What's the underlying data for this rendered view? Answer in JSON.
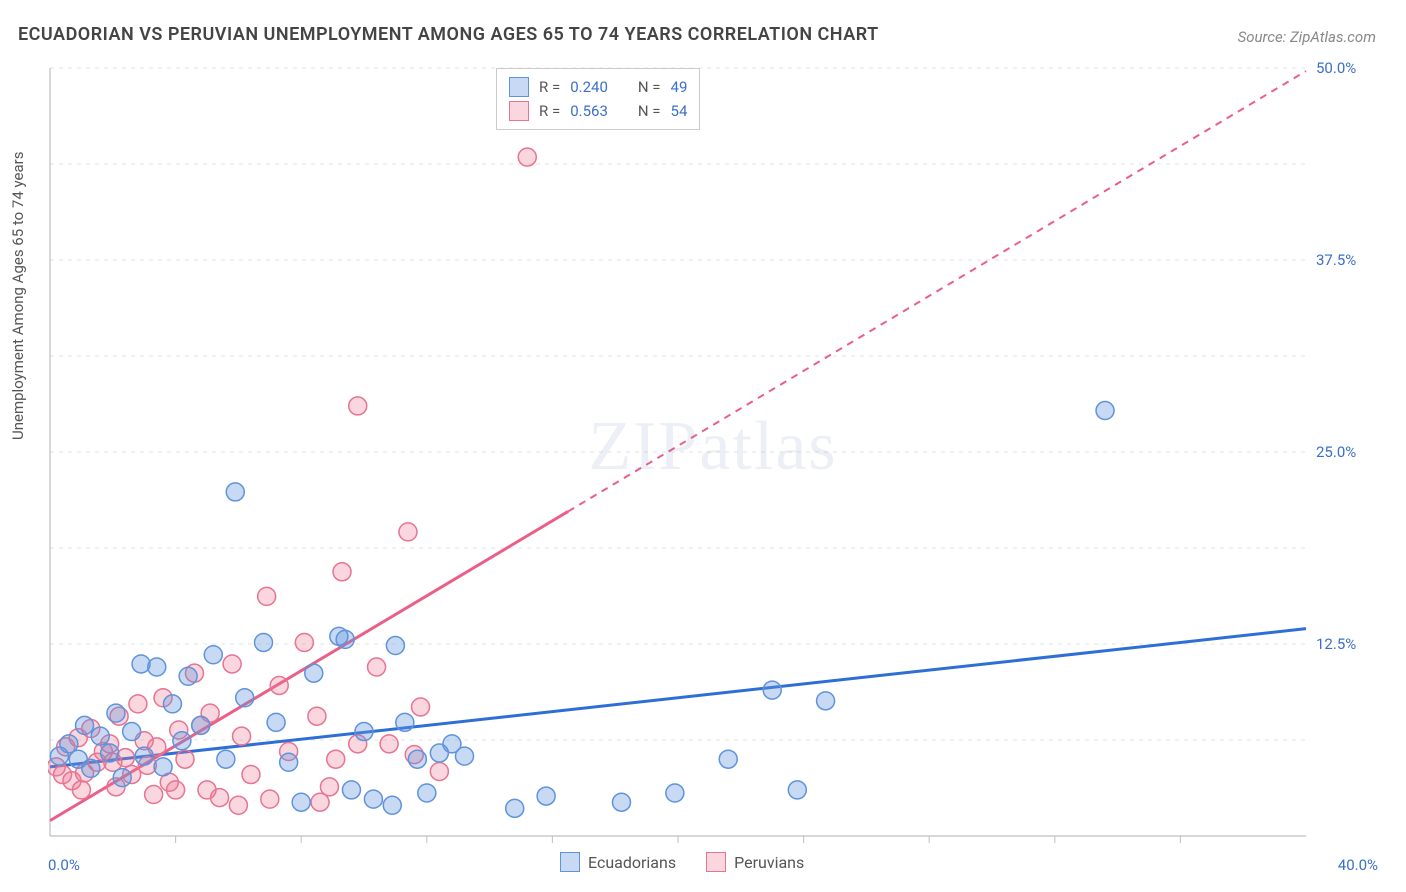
{
  "title": "ECUADORIAN VS PERUVIAN UNEMPLOYMENT AMONG AGES 65 TO 74 YEARS CORRELATION CHART",
  "source": "Source: ZipAtlas.com",
  "y_axis_label": "Unemployment Among Ages 65 to 74 years",
  "watermark": "ZIPatlas",
  "chart": {
    "type": "scatter",
    "background_color": "#ffffff",
    "grid_color": "#e3e3e3",
    "axis_color": "#bfbfbf",
    "tick_color": "#bfbfbf",
    "label_color": "#3b6fc9",
    "title_fontsize": 18,
    "label_fontsize": 15,
    "xlim": [
      0,
      40
    ],
    "ylim": [
      0,
      50
    ],
    "y_ticks": [
      12.5,
      25.0,
      37.5,
      50.0
    ],
    "y_tick_labels": [
      "12.5%",
      "25.0%",
      "37.5%",
      "50.0%"
    ],
    "x_ticks_minor": [
      4,
      8,
      12,
      16,
      20,
      24,
      28,
      32,
      36
    ],
    "x_origin_label": "0.0%",
    "x_max_label": "40.0%",
    "y_grid_extra": [
      6.25,
      18.75,
      31.25,
      43.75
    ],
    "marker_radius": 9,
    "marker_stroke_width": 1.5,
    "trend_line_width": 3,
    "series": [
      {
        "name": "Ecuadorians",
        "fill": "rgba(96,150,222,0.35)",
        "stroke": "#5f93dc",
        "line_color": "#2e6fd6",
        "line_dash": "",
        "trend": {
          "x1": 0,
          "y1": 4.5,
          "x2": 40,
          "y2": 13.5
        },
        "points": [
          [
            0.3,
            5.2
          ],
          [
            0.6,
            6.0
          ],
          [
            0.9,
            5.0
          ],
          [
            1.1,
            7.2
          ],
          [
            1.3,
            4.4
          ],
          [
            1.6,
            6.5
          ],
          [
            1.9,
            5.4
          ],
          [
            2.1,
            8.0
          ],
          [
            2.3,
            3.8
          ],
          [
            2.6,
            6.8
          ],
          [
            2.9,
            11.2
          ],
          [
            3.0,
            5.2
          ],
          [
            3.4,
            11.0
          ],
          [
            3.6,
            4.5
          ],
          [
            3.9,
            8.6
          ],
          [
            4.2,
            6.2
          ],
          [
            4.4,
            10.4
          ],
          [
            4.8,
            7.2
          ],
          [
            5.2,
            11.8
          ],
          [
            5.6,
            5.0
          ],
          [
            5.9,
            22.4
          ],
          [
            6.2,
            9.0
          ],
          [
            6.8,
            12.6
          ],
          [
            7.2,
            7.4
          ],
          [
            7.6,
            4.8
          ],
          [
            8.0,
            2.2
          ],
          [
            8.4,
            10.6
          ],
          [
            9.2,
            13.0
          ],
          [
            9.6,
            3.0
          ],
          [
            10.0,
            6.8
          ],
          [
            10.3,
            2.4
          ],
          [
            10.9,
            2.0
          ],
          [
            11.3,
            7.4
          ],
          [
            11.7,
            5.0
          ],
          [
            12.0,
            2.8
          ],
          [
            12.4,
            5.4
          ],
          [
            12.8,
            6.0
          ],
          [
            13.2,
            5.2
          ],
          [
            14.8,
            1.8
          ],
          [
            15.8,
            2.6
          ],
          [
            18.2,
            2.2
          ],
          [
            19.9,
            2.8
          ],
          [
            21.6,
            5.0
          ],
          [
            23.0,
            9.5
          ],
          [
            23.8,
            3.0
          ],
          [
            24.7,
            8.8
          ],
          [
            33.6,
            27.7
          ],
          [
            11.0,
            12.4
          ],
          [
            9.4,
            12.8
          ]
        ]
      },
      {
        "name": "Peruvians",
        "fill": "rgba(238,120,150,0.30)",
        "stroke": "#e77490",
        "line_color": "#ea5f88",
        "line_dash": "7,6",
        "trend_solid_until_x": 16.5,
        "trend": {
          "x1": 0,
          "y1": 1.0,
          "x2": 40,
          "y2": 49.8
        },
        "points": [
          [
            0.2,
            4.5
          ],
          [
            0.5,
            5.8
          ],
          [
            0.7,
            3.6
          ],
          [
            0.9,
            6.4
          ],
          [
            1.1,
            4.1
          ],
          [
            1.3,
            7.0
          ],
          [
            1.5,
            4.8
          ],
          [
            1.7,
            5.5
          ],
          [
            1.9,
            6.0
          ],
          [
            2.1,
            3.2
          ],
          [
            2.2,
            7.8
          ],
          [
            2.4,
            5.1
          ],
          [
            2.6,
            4.0
          ],
          [
            2.8,
            8.6
          ],
          [
            3.0,
            6.2
          ],
          [
            3.1,
            4.6
          ],
          [
            3.4,
            5.8
          ],
          [
            3.6,
            9.0
          ],
          [
            3.8,
            3.5
          ],
          [
            4.1,
            6.9
          ],
          [
            4.3,
            5.0
          ],
          [
            4.6,
            10.6
          ],
          [
            4.8,
            7.2
          ],
          [
            5.1,
            8.0
          ],
          [
            5.4,
            2.5
          ],
          [
            5.8,
            11.2
          ],
          [
            6.1,
            6.5
          ],
          [
            6.4,
            4.0
          ],
          [
            6.9,
            15.6
          ],
          [
            7.3,
            9.8
          ],
          [
            7.6,
            5.5
          ],
          [
            8.1,
            12.6
          ],
          [
            8.5,
            7.8
          ],
          [
            8.9,
            3.2
          ],
          [
            9.3,
            17.2
          ],
          [
            9.8,
            28.0
          ],
          [
            9.8,
            6.0
          ],
          [
            10.4,
            11.0
          ],
          [
            9.1,
            5.0
          ],
          [
            11.4,
            19.8
          ],
          [
            11.8,
            8.4
          ],
          [
            12.4,
            4.2
          ],
          [
            6.0,
            2.0
          ],
          [
            7.0,
            2.4
          ],
          [
            8.6,
            2.2
          ],
          [
            5.0,
            3.0
          ],
          [
            3.3,
            2.7
          ],
          [
            1.0,
            3.0
          ],
          [
            0.4,
            4.0
          ],
          [
            2.0,
            4.8
          ],
          [
            4.0,
            3.0
          ],
          [
            10.8,
            6.0
          ],
          [
            11.6,
            5.3
          ],
          [
            15.2,
            44.2
          ]
        ]
      }
    ]
  },
  "stats_legend": {
    "rows": [
      {
        "swatch_fill": "rgba(96,150,222,0.35)",
        "swatch_stroke": "#5f93dc",
        "r": "0.240",
        "n": "49"
      },
      {
        "swatch_fill": "rgba(238,120,150,0.30)",
        "swatch_stroke": "#e77490",
        "r": "0.563",
        "n": "54"
      }
    ],
    "labels": {
      "r": "R  =",
      "n": "N  ="
    }
  },
  "bottom_legend": {
    "items": [
      {
        "swatch_fill": "rgba(96,150,222,0.35)",
        "swatch_stroke": "#5f93dc",
        "label": "Ecuadorians"
      },
      {
        "swatch_fill": "rgba(238,120,150,0.30)",
        "swatch_stroke": "#e77490",
        "label": "Peruvians"
      }
    ]
  }
}
